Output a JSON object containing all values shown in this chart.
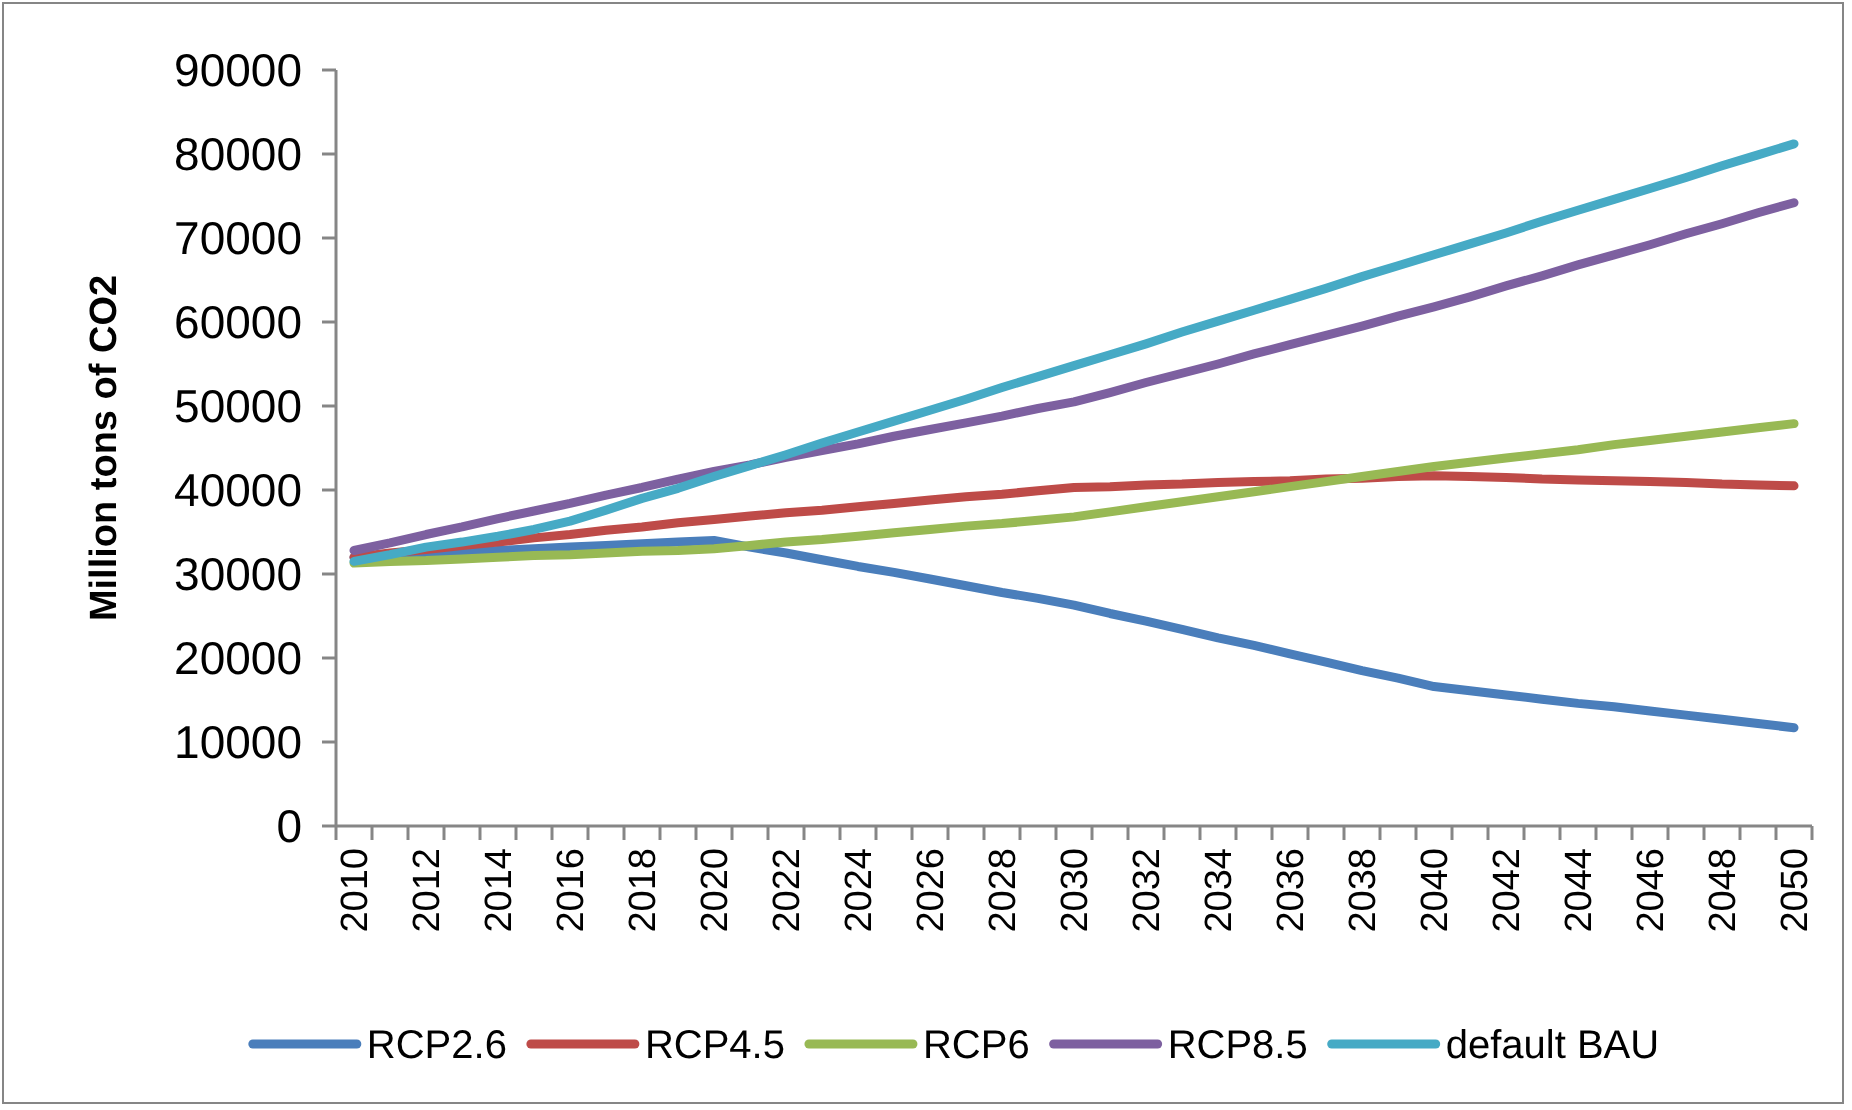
{
  "chart_data": {
    "type": "line",
    "ylabel": "Million tons of CO2",
    "categories": [
      "2010",
      null,
      "2012",
      null,
      "2014",
      null,
      "2016",
      null,
      "2018",
      null,
      "2020",
      null,
      "2022",
      null,
      "2024",
      null,
      "2026",
      null,
      "2028",
      null,
      "2030",
      null,
      "2032",
      null,
      "2034",
      null,
      "2036",
      null,
      "2038",
      null,
      "2040",
      null,
      "2042",
      null,
      "2044",
      null,
      "2046",
      null,
      "2048",
      null,
      "2050"
    ],
    "series": [
      {
        "name": "RCP2.6",
        "color": "#4a7ebb",
        "values": [
          32000,
          32200,
          32400,
          32600,
          32800,
          33000,
          33200,
          33400,
          33600,
          33800,
          34000,
          33200,
          32500,
          31700,
          30900,
          30200,
          29400,
          28600,
          27800,
          27100,
          26300,
          25300,
          24400,
          23400,
          22400,
          21500,
          20500,
          19500,
          18500,
          17600,
          16600,
          16100,
          15600,
          15100,
          14600,
          14200,
          13700,
          13200,
          12700,
          12200,
          11700
        ]
      },
      {
        "name": "RCP4.5",
        "color": "#be4b48",
        "values": [
          32000,
          32500,
          32900,
          33400,
          33800,
          34300,
          34700,
          35200,
          35600,
          36100,
          36500,
          36900,
          37300,
          37600,
          38000,
          38400,
          38800,
          39200,
          39500,
          39900,
          40300,
          40400,
          40600,
          40700,
          40900,
          41000,
          41100,
          41300,
          41400,
          41600,
          41700,
          41600,
          41500,
          41300,
          41200,
          41100,
          41000,
          40900,
          40700,
          40600,
          40500
        ]
      },
      {
        "name": "RCP6",
        "color": "#98b954",
        "values": [
          31300,
          31500,
          31600,
          31800,
          32000,
          32200,
          32300,
          32500,
          32700,
          32800,
          33000,
          33400,
          33800,
          34100,
          34500,
          34900,
          35300,
          35700,
          36000,
          36400,
          36800,
          37400,
          38000,
          38600,
          39200,
          39800,
          40400,
          41000,
          41600,
          42200,
          42800,
          43300,
          43800,
          44300,
          44800,
          45400,
          45900,
          46400,
          46900,
          47400,
          47900
        ]
      },
      {
        "name": "RCP8.5",
        "color": "#7d60a0",
        "values": [
          32800,
          33700,
          34700,
          35600,
          36600,
          37500,
          38400,
          39400,
          40300,
          41300,
          42200,
          43000,
          43900,
          44700,
          45500,
          46400,
          47200,
          48000,
          48800,
          49700,
          50500,
          51600,
          52800,
          53900,
          55000,
          56200,
          57300,
          58400,
          59500,
          60700,
          61800,
          63000,
          64300,
          65500,
          66800,
          68000,
          69200,
          70500,
          71700,
          73000,
          74200
        ]
      },
      {
        "name": "default BAU",
        "color": "#46aac5",
        "values": [
          31500,
          32300,
          33200,
          33800,
          34500,
          35300,
          36300,
          37600,
          39000,
          40200,
          41600,
          42900,
          44200,
          45600,
          46900,
          48200,
          49500,
          50800,
          52200,
          53500,
          54800,
          56100,
          57400,
          58800,
          60100,
          61400,
          62700,
          64000,
          65400,
          66700,
          68000,
          69300,
          70600,
          72000,
          73300,
          74600,
          75900,
          77200,
          78600,
          79900,
          81200
        ]
      }
    ],
    "ylim": [
      0,
      90000
    ],
    "yticks": [
      0,
      10000,
      20000,
      30000,
      40000,
      50000,
      60000,
      70000,
      80000,
      90000
    ],
    "legend": "bottom"
  }
}
